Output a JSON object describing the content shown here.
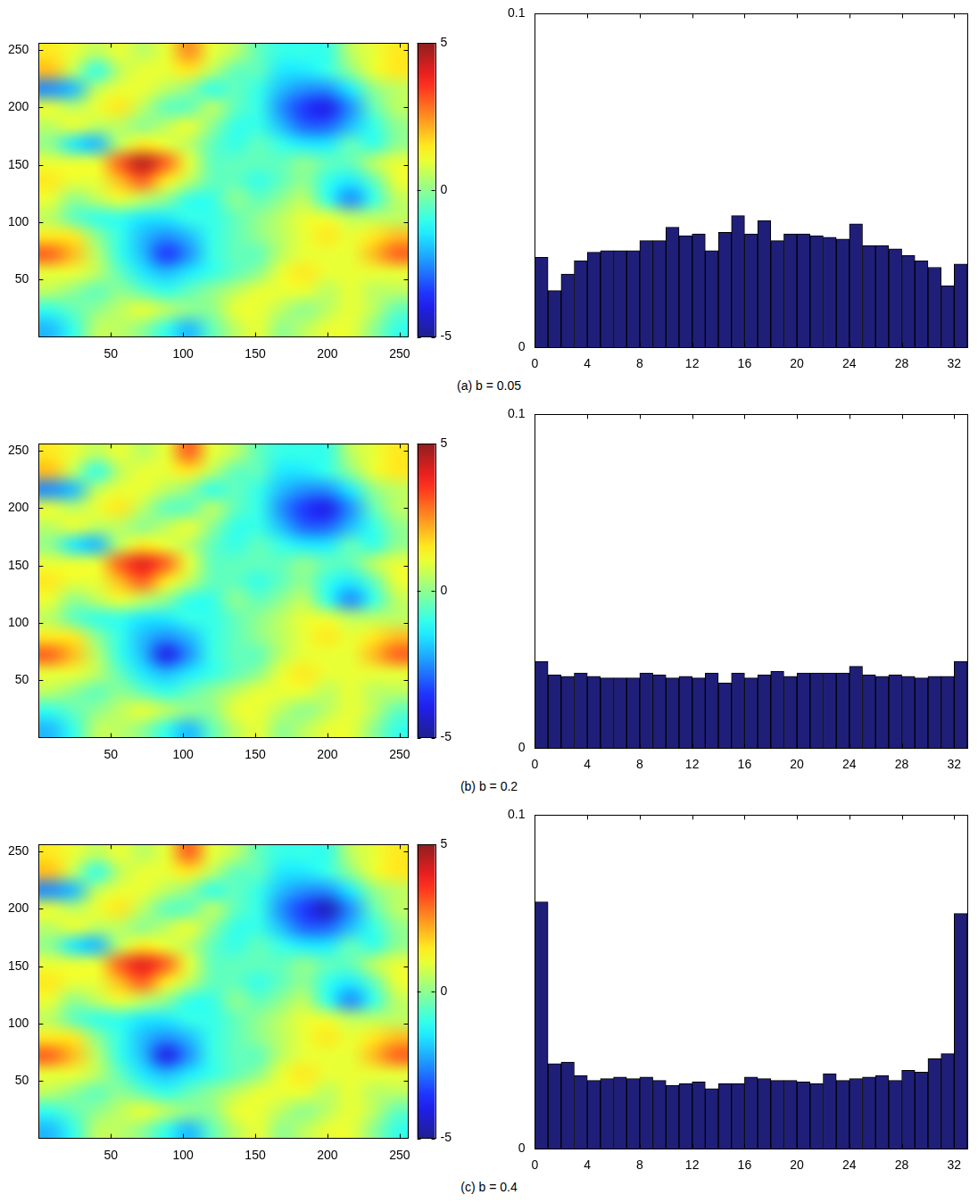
{
  "chart_data": [
    {
      "type": "heatmap",
      "title": "(a) b = 0.05",
      "x": [
        8,
        24,
        40,
        56,
        72,
        88,
        104,
        120,
        136,
        152,
        168,
        184,
        200,
        216,
        232,
        248
      ],
      "y": [
        8,
        24,
        40,
        56,
        72,
        88,
        104,
        120,
        136,
        152,
        168,
        184,
        200,
        216,
        232,
        248
      ],
      "cells": [
        [
          -2,
          -1,
          0.5,
          0.5,
          0,
          -1,
          -2,
          -0.5,
          0.5,
          1,
          0,
          0.5,
          1,
          1,
          0,
          -1
        ],
        [
          -1,
          -0.5,
          0,
          0.5,
          1,
          0.5,
          0,
          0,
          1,
          1,
          0.5,
          0,
          0.5,
          1,
          0.5,
          -0.5
        ],
        [
          0.5,
          0,
          -0.5,
          0,
          -0.5,
          -1,
          -0.5,
          0,
          0.5,
          1,
          1,
          1,
          0.5,
          1,
          0.5,
          0.5
        ],
        [
          1,
          1,
          0.5,
          -0.5,
          -1.5,
          -2,
          -1.5,
          -1,
          -0.5,
          0,
          1,
          1.5,
          1,
          1,
          1,
          1
        ],
        [
          3,
          2,
          0.5,
          -1,
          -2,
          -3.5,
          -2.5,
          -1,
          -0.5,
          -0.5,
          0.5,
          1,
          1,
          1,
          2,
          3
        ],
        [
          1.5,
          1.5,
          0,
          -1,
          -2,
          -2.5,
          -2,
          -1,
          -0.5,
          0,
          0.5,
          1,
          1.5,
          1,
          1.5,
          2
        ],
        [
          0.5,
          -0.5,
          -1,
          -1,
          -1.5,
          -1.5,
          -1,
          -1,
          -0.5,
          0,
          0.5,
          1,
          1,
          0.5,
          0.5,
          0.5
        ],
        [
          1,
          0,
          0.5,
          1,
          0.5,
          0,
          -1,
          -1,
          0,
          -0.5,
          0,
          0.5,
          -1,
          -2.5,
          -1,
          0.5
        ],
        [
          1.5,
          1,
          1,
          2,
          3,
          1.5,
          0.5,
          -0.5,
          -0.5,
          -1,
          -0.5,
          0,
          -1,
          -1.5,
          -0.5,
          1
        ],
        [
          1,
          1,
          1,
          3,
          4.5,
          3,
          1,
          -0.5,
          -0.5,
          -0.5,
          -0.5,
          0,
          -0.5,
          -0.5,
          0.5,
          1
        ],
        [
          0,
          -1.5,
          -2,
          0.5,
          1.5,
          1,
          0.5,
          -0.5,
          -1,
          -0.5,
          -1,
          -1.5,
          -1.5,
          -0.5,
          -1,
          0
        ],
        [
          0.5,
          1,
          0.5,
          0.5,
          0,
          0.5,
          1,
          0,
          -1,
          -1,
          -2,
          -3,
          -3,
          -2,
          -1,
          0
        ],
        [
          1,
          0.5,
          1,
          1.5,
          0.5,
          -0.5,
          -0.5,
          0.5,
          -0.5,
          -1,
          -2.5,
          -3.5,
          -4,
          -2.5,
          -0.5,
          0.5
        ],
        [
          -2.5,
          -2,
          0.5,
          1,
          1,
          0.5,
          0,
          -1,
          -0.5,
          -1,
          -2,
          -2.5,
          -2.5,
          -1.5,
          0,
          0.5
        ],
        [
          2,
          0.5,
          -1,
          0.5,
          1,
          1,
          1.5,
          0.5,
          -0.5,
          -0.5,
          -1.5,
          -1.5,
          -1,
          0,
          1,
          1.5
        ],
        [
          1.5,
          1,
          0.5,
          1,
          0.5,
          1,
          2.5,
          1,
          0.5,
          -0.5,
          -1,
          -1,
          -1,
          0.5,
          1,
          1.5
        ]
      ],
      "xlim": [
        0,
        256
      ],
      "ylim": [
        0,
        256
      ],
      "xticks": [
        50,
        100,
        150,
        200,
        250
      ],
      "yticks": [
        50,
        100,
        150,
        200,
        250
      ],
      "colorbar": {
        "range": [
          -5,
          5
        ],
        "ticks": [
          -5,
          0,
          5
        ]
      }
    },
    {
      "type": "histogram",
      "bins": [
        0,
        1,
        2,
        3,
        4,
        5,
        6,
        7,
        8,
        9,
        10,
        11,
        12,
        13,
        14,
        15,
        16,
        17,
        18,
        19,
        20,
        21,
        22,
        23,
        24,
        25,
        26,
        27,
        28,
        29,
        30,
        31,
        32,
        33
      ],
      "values": [
        0.027,
        0.017,
        0.022,
        0.026,
        0.0285,
        0.029,
        0.029,
        0.029,
        0.032,
        0.032,
        0.036,
        0.0335,
        0.034,
        0.029,
        0.0345,
        0.0395,
        0.034,
        0.038,
        0.032,
        0.034,
        0.034,
        0.0335,
        0.033,
        0.0325,
        0.037,
        0.0305,
        0.0305,
        0.0295,
        0.0275,
        0.026,
        0.024,
        0.0185,
        0.025
      ],
      "color": "#1f1f7a",
      "xlim": [
        0,
        33
      ],
      "ylim": [
        0,
        0.1
      ],
      "xticks": [
        0,
        4,
        8,
        12,
        16,
        20,
        24,
        28,
        32
      ],
      "yticks": [
        0,
        0.1
      ]
    },
    {
      "type": "heatmap",
      "title": "(b) b = 0.2",
      "x": [
        8,
        24,
        40,
        56,
        72,
        88,
        104,
        120,
        136,
        152,
        168,
        184,
        200,
        216,
        232,
        248
      ],
      "y": [
        8,
        24,
        40,
        56,
        72,
        88,
        104,
        120,
        136,
        152,
        168,
        184,
        200,
        216,
        232,
        248
      ],
      "cells": [
        [
          -2,
          -1,
          0.5,
          0.5,
          0,
          -1,
          -2,
          -0.5,
          0.5,
          1,
          0,
          0.5,
          1,
          1,
          0,
          -1
        ],
        [
          -1,
          -0.5,
          0,
          0.5,
          1,
          0.5,
          0,
          0,
          1,
          1,
          0.5,
          0,
          0.5,
          1,
          0.5,
          -0.5
        ],
        [
          0.5,
          0,
          -0.5,
          0,
          -0.5,
          -1,
          -0.5,
          0,
          0.5,
          1,
          1,
          1,
          0.5,
          1,
          0.5,
          0.5
        ],
        [
          1,
          1,
          0.5,
          -0.5,
          -1.5,
          -2,
          -1.5,
          -1,
          -0.5,
          0,
          1,
          1.5,
          1,
          1,
          1,
          1
        ],
        [
          3,
          2,
          0.5,
          -1,
          -2,
          -4,
          -2.5,
          -1,
          -0.5,
          -0.5,
          0.5,
          1,
          1,
          1,
          2,
          3
        ],
        [
          1.5,
          1.5,
          0,
          -1,
          -2,
          -2.5,
          -2,
          -1,
          -0.5,
          0,
          0.5,
          1,
          1.5,
          1,
          1.5,
          2
        ],
        [
          0.5,
          -0.5,
          -1,
          -1,
          -1.5,
          -1.5,
          -1,
          -1,
          -0.5,
          0,
          0.5,
          1,
          1,
          0.5,
          0.5,
          0.5
        ],
        [
          1,
          0,
          0.5,
          1,
          0.5,
          0,
          -1,
          -1,
          0,
          -0.5,
          0,
          0.5,
          -1,
          -2.5,
          -1,
          0.5
        ],
        [
          1.5,
          1,
          1,
          2,
          3,
          1.5,
          0.5,
          -0.5,
          -0.5,
          -1,
          -0.5,
          0,
          -1,
          -1.5,
          -0.5,
          1
        ],
        [
          1,
          1,
          1,
          3,
          4,
          3,
          1,
          -0.5,
          -0.5,
          -0.5,
          -0.5,
          0,
          -0.5,
          -0.5,
          0.5,
          1
        ],
        [
          0,
          -1.5,
          -2,
          0.5,
          1.5,
          1,
          0.5,
          -0.5,
          -1,
          -0.5,
          -1,
          -1.5,
          -1.5,
          -0.5,
          -1,
          0
        ],
        [
          0.5,
          1,
          0.5,
          0.5,
          0,
          0.5,
          1,
          0,
          -1,
          -1,
          -2,
          -3,
          -3,
          -2,
          -1,
          0
        ],
        [
          1,
          0.5,
          1,
          1.5,
          0.5,
          -0.5,
          -0.5,
          0.5,
          -0.5,
          -1,
          -2.5,
          -3.5,
          -4,
          -2.5,
          -0.5,
          0.5
        ],
        [
          -2.5,
          -2,
          0.5,
          1,
          1,
          0.5,
          0,
          -1,
          -0.5,
          -1,
          -2,
          -2.5,
          -2.5,
          -1.5,
          0,
          0.5
        ],
        [
          2,
          0.5,
          -1,
          0.5,
          1,
          1,
          1.5,
          0.5,
          -0.5,
          -0.5,
          -1.5,
          -1.5,
          -1,
          0,
          1,
          1.5
        ],
        [
          1.5,
          1,
          0.5,
          1,
          0.5,
          1,
          3,
          1,
          0.5,
          -0.5,
          -1,
          -1,
          -1,
          0.5,
          1,
          1.5
        ]
      ],
      "xlim": [
        0,
        256
      ],
      "ylim": [
        0,
        256
      ],
      "xticks": [
        50,
        100,
        150,
        200,
        250
      ],
      "yticks": [
        50,
        100,
        150,
        200,
        250
      ],
      "colorbar": {
        "range": [
          -5,
          5
        ],
        "ticks": [
          -5,
          0,
          5
        ]
      }
    },
    {
      "type": "histogram",
      "bins": [
        0,
        1,
        2,
        3,
        4,
        5,
        6,
        7,
        8,
        9,
        10,
        11,
        12,
        13,
        14,
        15,
        16,
        17,
        18,
        19,
        20,
        21,
        22,
        23,
        24,
        25,
        26,
        27,
        28,
        29,
        30,
        31,
        32,
        33
      ],
      "values": [
        0.026,
        0.022,
        0.0215,
        0.0225,
        0.0215,
        0.021,
        0.021,
        0.021,
        0.0225,
        0.022,
        0.021,
        0.0215,
        0.021,
        0.0225,
        0.0195,
        0.0225,
        0.021,
        0.022,
        0.023,
        0.0215,
        0.0225,
        0.0225,
        0.0225,
        0.0225,
        0.0245,
        0.022,
        0.0215,
        0.022,
        0.0215,
        0.021,
        0.0215,
        0.0215,
        0.026
      ],
      "color": "#1f1f7a",
      "xlim": [
        0,
        33
      ],
      "ylim": [
        0,
        0.1
      ],
      "xticks": [
        0,
        4,
        8,
        12,
        16,
        20,
        24,
        28,
        32
      ],
      "yticks": [
        0,
        0.1
      ]
    },
    {
      "type": "heatmap",
      "title": "(c) b = 0.4",
      "x": [
        8,
        24,
        40,
        56,
        72,
        88,
        104,
        120,
        136,
        152,
        168,
        184,
        200,
        216,
        232,
        248
      ],
      "y": [
        8,
        24,
        40,
        56,
        72,
        88,
        104,
        120,
        136,
        152,
        168,
        184,
        200,
        216,
        232,
        248
      ],
      "cells": [
        [
          -2,
          -1,
          0.5,
          0.5,
          0,
          -1,
          -2,
          -0.5,
          0.5,
          1,
          0,
          0.5,
          1,
          1,
          0,
          -1
        ],
        [
          -1,
          -0.5,
          0,
          0.5,
          1,
          0.5,
          0,
          0,
          1,
          1,
          0.5,
          0,
          0.5,
          1,
          0.5,
          -0.5
        ],
        [
          0.5,
          0,
          -0.5,
          0,
          -0.5,
          -1,
          -0.5,
          0,
          0.5,
          1,
          1,
          1,
          0.5,
          1,
          0.5,
          0.5
        ],
        [
          1,
          1,
          0.5,
          -0.5,
          -1.5,
          -2,
          -1.5,
          -1,
          -0.5,
          0,
          1,
          1.5,
          1,
          1,
          1,
          1
        ],
        [
          3,
          2,
          0.5,
          -1,
          -2,
          -4,
          -2.5,
          -1,
          -0.5,
          -0.5,
          0.5,
          1,
          1,
          1,
          2,
          3
        ],
        [
          1.5,
          1.5,
          0,
          -1,
          -2,
          -2.5,
          -2,
          -1,
          -0.5,
          0,
          0.5,
          1,
          1.5,
          1,
          1.5,
          2
        ],
        [
          0.5,
          -0.5,
          -1,
          -1,
          -1.5,
          -1.5,
          -1,
          -1,
          -0.5,
          0,
          0.5,
          1,
          1,
          0.5,
          0.5,
          0.5
        ],
        [
          1,
          0,
          0.5,
          1,
          0.5,
          0,
          -1,
          -1,
          0,
          -0.5,
          0,
          0.5,
          -1,
          -2.5,
          -1,
          0.5
        ],
        [
          1.5,
          1,
          1,
          2,
          3,
          1.5,
          0.5,
          -0.5,
          -0.5,
          -1,
          -0.5,
          0,
          -1,
          -1.5,
          -0.5,
          1
        ],
        [
          1,
          1,
          1,
          3,
          4,
          3,
          1,
          -0.5,
          -0.5,
          -0.5,
          -0.5,
          0,
          -0.5,
          -0.5,
          0.5,
          1
        ],
        [
          0,
          -1.5,
          -2,
          0.5,
          1.5,
          1,
          0.5,
          -0.5,
          -1,
          -0.5,
          -1,
          -1.5,
          -1.5,
          -0.5,
          -1,
          0
        ],
        [
          0.5,
          1,
          0.5,
          0.5,
          0,
          0.5,
          1,
          0,
          -1,
          -1,
          -2,
          -3,
          -3,
          -2,
          -1,
          0
        ],
        [
          1,
          0.5,
          1,
          1.5,
          0.5,
          -0.5,
          -0.5,
          0.5,
          -0.5,
          -1,
          -2.5,
          -3.5,
          -4.5,
          -2.5,
          -0.5,
          0.5
        ],
        [
          -2.5,
          -2,
          0.5,
          1,
          1,
          0.5,
          0,
          -1,
          -0.5,
          -1,
          -2,
          -2.5,
          -2.5,
          -1.5,
          0,
          0.5
        ],
        [
          2,
          0.5,
          -1,
          0.5,
          1,
          1,
          1.5,
          0.5,
          -0.5,
          -0.5,
          -1.5,
          -1.5,
          -1,
          0,
          1,
          1.5
        ],
        [
          1.5,
          1,
          0.5,
          1,
          0.5,
          1,
          3,
          1,
          0.5,
          -0.5,
          -1,
          -1,
          -1,
          0.5,
          1,
          1.5
        ]
      ],
      "xlim": [
        0,
        256
      ],
      "ylim": [
        0,
        256
      ],
      "xticks": [
        50,
        100,
        150,
        200,
        250
      ],
      "yticks": [
        50,
        100,
        150,
        200,
        250
      ],
      "colorbar": {
        "range": [
          -5,
          5
        ],
        "ticks": [
          -5,
          0,
          5
        ]
      }
    },
    {
      "type": "histogram",
      "bins": [
        0,
        1,
        2,
        3,
        4,
        5,
        6,
        7,
        8,
        9,
        10,
        11,
        12,
        13,
        14,
        15,
        16,
        17,
        18,
        19,
        20,
        21,
        22,
        23,
        24,
        25,
        26,
        27,
        28,
        29,
        30,
        31,
        32,
        33
      ],
      "values": [
        0.074,
        0.0255,
        0.026,
        0.022,
        0.0205,
        0.021,
        0.0215,
        0.021,
        0.0215,
        0.0205,
        0.019,
        0.0195,
        0.02,
        0.018,
        0.0195,
        0.0195,
        0.0215,
        0.021,
        0.0205,
        0.0205,
        0.02,
        0.0195,
        0.0225,
        0.0205,
        0.021,
        0.0215,
        0.022,
        0.0205,
        0.0235,
        0.023,
        0.027,
        0.0285,
        0.0705
      ],
      "color": "#1f1f7a",
      "xlim": [
        0,
        33
      ],
      "ylim": [
        0,
        0.1
      ],
      "xticks": [
        0,
        4,
        8,
        12,
        16,
        20,
        24,
        28,
        32
      ],
      "yticks": [
        0,
        0.1
      ]
    }
  ]
}
